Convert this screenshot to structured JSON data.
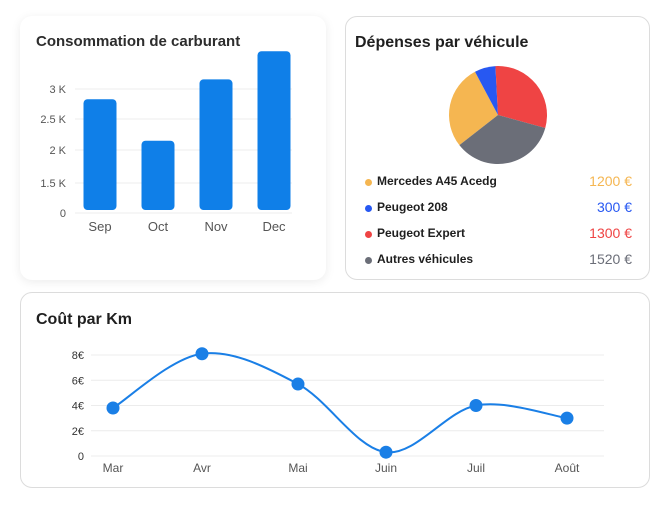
{
  "fuel": {
    "title": "Consommation de carburant",
    "chart_data": {
      "type": "bar",
      "title": "Consommation de carburant",
      "categories": [
        "Sep",
        "Oct",
        "Nov",
        "Dec"
      ],
      "values": [
        2830,
        2150,
        3160,
        3630
      ],
      "yticks": [
        "0",
        "1.5 K",
        "2 K",
        "2.5 K",
        "3 K"
      ],
      "color": "#0f7fe8",
      "grid": true
    }
  },
  "expenses": {
    "title": "Dépenses par véhicule",
    "chart_data": {
      "type": "pie",
      "title": "Dépenses par véhicule",
      "series": [
        {
          "name": "Mercedes A45 Acedg",
          "value": 1200,
          "amount": "1200 €",
          "color": "#f5b651"
        },
        {
          "name": "Peugeot 208",
          "value": 300,
          "amount": "300 €",
          "color": "#2758f2"
        },
        {
          "name": "Peugeot Expert",
          "value": 1300,
          "amount": "1300 €",
          "color": "#ef4444"
        },
        {
          "name": "Autres véhicules",
          "value": 1520,
          "amount": "1520 €",
          "color": "#6b6e78"
        }
      ]
    }
  },
  "cost": {
    "title": "Coût par Km",
    "chart_data": {
      "type": "line",
      "title": "Coût par Km",
      "categories": [
        "Mar",
        "Avr",
        "Mai",
        "Juin",
        "Juil",
        "Août"
      ],
      "values": [
        3.8,
        8.1,
        5.7,
        0.3,
        4.0,
        3.0
      ],
      "yticks": [
        "0",
        "2€",
        "4€",
        "6€",
        "8€"
      ],
      "ylim": [
        0,
        8
      ],
      "color": "#1a7fe6",
      "grid": true
    }
  }
}
